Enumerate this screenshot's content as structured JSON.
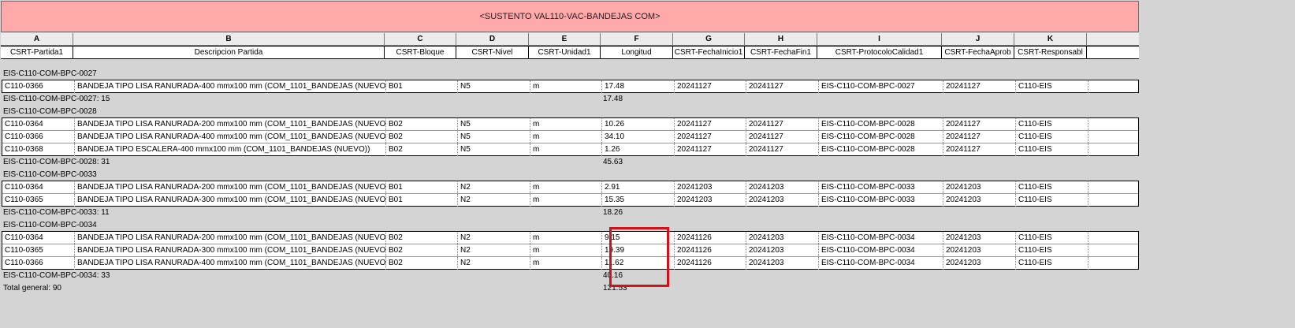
{
  "title": "<SUSTENTO VAL110-VAC-BANDEJAS COM>",
  "columns": [
    {
      "letter": "A",
      "name": "CSRT-Partida1"
    },
    {
      "letter": "B",
      "name": "Descripcion Partida"
    },
    {
      "letter": "C",
      "name": "CSRT-Bloque"
    },
    {
      "letter": "D",
      "name": "CSRT-Nivel"
    },
    {
      "letter": "E",
      "name": "CSRT-Unidad1"
    },
    {
      "letter": "F",
      "name": "Longitud"
    },
    {
      "letter": "G",
      "name": "CSRT-FechaInicio1"
    },
    {
      "letter": "H",
      "name": "CSRT-FechaFin1"
    },
    {
      "letter": "I",
      "name": "CSRT-ProtocoloCalidad1"
    },
    {
      "letter": "J",
      "name": "CSRT-FechaAprob"
    },
    {
      "letter": "K",
      "name": "CSRT-Responsabl"
    }
  ],
  "groups": [
    {
      "header": "EIS-C110-COM-BPC-0027",
      "rows": [
        [
          "C110-0366",
          "BANDEJA TIPO LISA RANURADA-400 mmx100 mm (COM_1101_BANDEJAS (NUEVO",
          "B01",
          "N5",
          "m",
          "17.48",
          "20241127",
          "20241127",
          "EIS-C110-COM-BPC-0027",
          "20241127",
          "C110-EIS"
        ]
      ],
      "footer_label": "EIS-C110-COM-BPC-0027: 15",
      "footer_total": "17.48"
    },
    {
      "header": "EIS-C110-COM-BPC-0028",
      "rows": [
        [
          "C110-0364",
          "BANDEJA TIPO LISA RANURADA-200 mmx100 mm (COM_1101_BANDEJAS (NUEVO",
          "B02",
          "N5",
          "m",
          "10.26",
          "20241127",
          "20241127",
          "EIS-C110-COM-BPC-0028",
          "20241127",
          "C110-EIS"
        ],
        [
          "C110-0366",
          "BANDEJA TIPO LISA RANURADA-400 mmx100 mm (COM_1101_BANDEJAS (NUEVO",
          "B02",
          "N5",
          "m",
          "34.10",
          "20241127",
          "20241127",
          "EIS-C110-COM-BPC-0028",
          "20241127",
          "C110-EIS"
        ],
        [
          "C110-0368",
          "BANDEJA TIPO ESCALERA-400 mmx100 mm (COM_1101_BANDEJAS (NUEVO))",
          "B02",
          "N5",
          "m",
          "1.26",
          "20241127",
          "20241127",
          "EIS-C110-COM-BPC-0028",
          "20241127",
          "C110-EIS"
        ]
      ],
      "footer_label": "EIS-C110-COM-BPC-0028: 31",
      "footer_total": "45.63"
    },
    {
      "header": "EIS-C110-COM-BPC-0033",
      "rows": [
        [
          "C110-0364",
          "BANDEJA TIPO LISA RANURADA-200 mmx100 mm (COM_1101_BANDEJAS (NUEVO",
          "B01",
          "N2",
          "m",
          "2.91",
          "20241203",
          "20241203",
          "EIS-C110-COM-BPC-0033",
          "20241203",
          "C110-EIS"
        ],
        [
          "C110-0365",
          "BANDEJA TIPO LISA RANURADA-300 mmx100 mm (COM_1101_BANDEJAS (NUEVO",
          "B01",
          "N2",
          "m",
          "15.35",
          "20241203",
          "20241203",
          "EIS-C110-COM-BPC-0033",
          "20241203",
          "C110-EIS"
        ]
      ],
      "footer_label": "EIS-C110-COM-BPC-0033: 11",
      "footer_total": "18.26"
    },
    {
      "header": "EIS-C110-COM-BPC-0034",
      "rows": [
        [
          "C110-0364",
          "BANDEJA TIPO LISA RANURADA-200 mmx100 mm (COM_1101_BANDEJAS (NUEVO",
          "B02",
          "N2",
          "m",
          "9.15",
          "20241126",
          "20241203",
          "EIS-C110-COM-BPC-0034",
          "20241203",
          "C110-EIS"
        ],
        [
          "C110-0365",
          "BANDEJA TIPO LISA RANURADA-300 mmx100 mm (COM_1101_BANDEJAS (NUEVO",
          "B02",
          "N2",
          "m",
          "19.39",
          "20241126",
          "20241203",
          "EIS-C110-COM-BPC-0034",
          "20241203",
          "C110-EIS"
        ],
        [
          "C110-0366",
          "BANDEJA TIPO LISA RANURADA-400 mmx100 mm (COM_1101_BANDEJAS (NUEVO",
          "B02",
          "N2",
          "m",
          "11.62",
          "20241126",
          "20241203",
          "EIS-C110-COM-BPC-0034",
          "20241203",
          "C110-EIS"
        ]
      ],
      "footer_label": "EIS-C110-COM-BPC-0034: 33",
      "footer_total": "40.16"
    }
  ],
  "grand_total_label": "Total general: 90",
  "grand_total": "121.53",
  "colors": {
    "title_bg": "#ffa9ab",
    "highlight": "#d0121b",
    "background": "#d4d4d4"
  }
}
